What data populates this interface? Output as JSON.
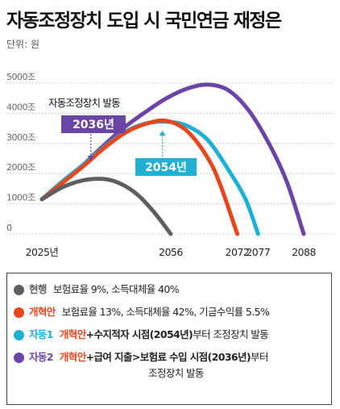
{
  "title": "자동조정장치 도입 시 국민연금 재정은",
  "unit": "단위: 원",
  "colors": {
    "current": "#5f5f5f",
    "reform": "#e8461e",
    "auto1": "#1fb0d3",
    "auto2": "#6b45a6"
  },
  "chart_data": {
    "type": "line",
    "title": "자동조정장치 도입 시 국민연금 재정은",
    "ylabel": "",
    "xlabel": "",
    "yticks": [
      "5000조",
      "4000조",
      "3000조",
      "2000조",
      "1000조",
      "0"
    ],
    "ytick_values": [
      5000,
      4000,
      3000,
      2000,
      1000,
      0
    ],
    "ylim": [
      0,
      5000
    ],
    "xlim": [
      2025,
      2088
    ],
    "xticks": [
      "2025년",
      "2056",
      "2072",
      "2077",
      "2088"
    ],
    "xtick_values": [
      2025,
      2056,
      2072,
      2077,
      2088
    ],
    "grid": true,
    "series": [
      {
        "name": "현행",
        "key": "current",
        "x": [
          2025,
          2030,
          2035,
          2040,
          2044,
          2048,
          2052,
          2056
        ],
        "y": [
          1150,
          1550,
          1780,
          1820,
          1660,
          1300,
          720,
          0
        ]
      },
      {
        "name": "개혁안",
        "key": "reform",
        "x": [
          2025,
          2030,
          2035,
          2040,
          2045,
          2050,
          2055,
          2060,
          2065,
          2068,
          2072
        ],
        "y": [
          1150,
          1700,
          2250,
          2850,
          3350,
          3650,
          3750,
          3400,
          2500,
          1600,
          0
        ]
      },
      {
        "name": "자동1",
        "key": "auto1",
        "x": [
          2025,
          2030,
          2035,
          2040,
          2045,
          2050,
          2055,
          2060,
          2065,
          2070,
          2074,
          2077
        ],
        "y": [
          1150,
          1750,
          2300,
          2880,
          3380,
          3660,
          3720,
          3580,
          3100,
          2100,
          1150,
          0
        ]
      },
      {
        "name": "자동2",
        "key": "auto2",
        "x": [
          2025,
          2030,
          2035,
          2040,
          2045,
          2050,
          2055,
          2060,
          2065,
          2070,
          2075,
          2080,
          2084,
          2088
        ],
        "y": [
          1150,
          1700,
          2300,
          2950,
          3550,
          4050,
          4500,
          4820,
          4950,
          4750,
          4050,
          2900,
          1700,
          0
        ]
      }
    ],
    "annotations": [
      {
        "text": "자동조정장치 발동",
        "series": "auto2"
      },
      {
        "text": "2036년",
        "series": "auto2",
        "x": 2036
      },
      {
        "text": "2054년",
        "series": "auto1",
        "x": 2054
      }
    ]
  },
  "legend": [
    {
      "key": "current",
      "name": "현행",
      "desc_plain": "보험료율 9%, 소득대체율 40%"
    },
    {
      "key": "reform",
      "name": "개혁안",
      "desc_plain": "보험료율 13%, 소득대체율 42%, 기금수익률 5.5%"
    },
    {
      "key": "auto1",
      "name": "자동1",
      "desc_hl": "개혁안",
      "desc_bold": "+수지적자 시점(2054년)",
      "desc_rest": "부터 조정장치 발동"
    },
    {
      "key": "auto2",
      "name": "자동2",
      "desc_hl": "개혁안",
      "desc_bold": "+급여 지출>보험료 수입 시점(2036년)",
      "desc_rest": "부터",
      "desc_line2": "조정장치 발동"
    }
  ]
}
